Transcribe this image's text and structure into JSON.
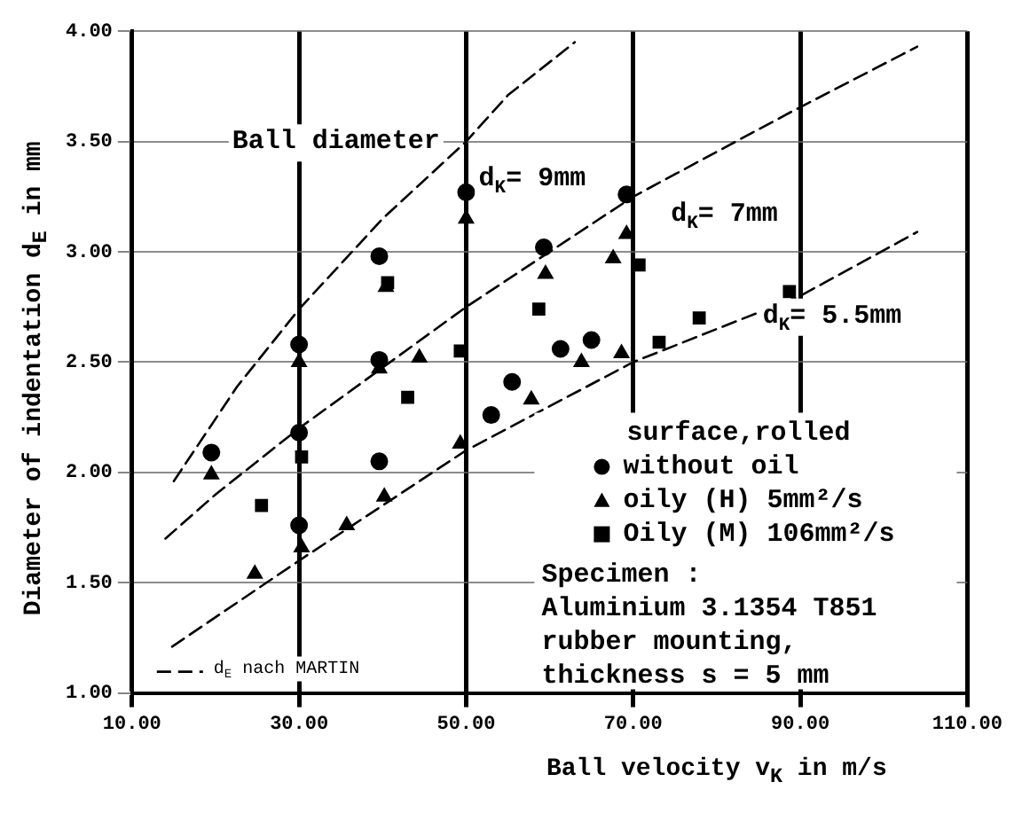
{
  "chart_data": {
    "type": "scatter",
    "xlabel": "Ball velocity v$_{K}$ in m/s",
    "ylabel": "Diameter of indentation d$_{E}$ in mm",
    "xlim": [
      10,
      110
    ],
    "ylim": [
      1,
      4
    ],
    "xticks": [
      {
        "value": 10,
        "label": "10.00"
      },
      {
        "value": 30,
        "label": "30.00"
      },
      {
        "value": 50,
        "label": "50.00"
      },
      {
        "value": 70,
        "label": "70.00"
      },
      {
        "value": 90,
        "label": "90.00"
      },
      {
        "value": 110,
        "label": "110.00"
      }
    ],
    "yticks": [
      {
        "value": 1,
        "label": "1.00"
      },
      {
        "value": 1.5,
        "label": "1.50"
      },
      {
        "value": 2,
        "label": "2.00"
      },
      {
        "value": 2.5,
        "label": "2.50"
      },
      {
        "value": 3,
        "label": "3.00"
      },
      {
        "value": 3.5,
        "label": "3.50"
      },
      {
        "value": 4,
        "label": "4.00"
      }
    ],
    "grid": true,
    "legend": "bottom",
    "series": [
      {
        "type": "scatter",
        "name": "without oil",
        "color": "#000000",
        "marker": "circle",
        "x": [
          19.5,
          30,
          39.6,
          50,
          30,
          39.6,
          59.3,
          69.2,
          30,
          39.6,
          53,
          55.5,
          61.3,
          65
        ],
        "values": [
          2.09,
          2.58,
          2.98,
          3.27,
          2.18,
          2.51,
          3.02,
          3.26,
          1.76,
          2.05,
          2.26,
          2.41,
          2.56,
          2.6
        ]
      },
      {
        "type": "scatter",
        "name": "oily (H) 5mm²/s",
        "color": "#000000",
        "marker": "triangle",
        "x": [
          19.5,
          30,
          40.4,
          50,
          39.6,
          44.4,
          59.5,
          67.6,
          69.2,
          24.7,
          30.3,
          35.7,
          40.2,
          49.3,
          57.8,
          63.8,
          68.6
        ],
        "values": [
          1.99,
          2.5,
          2.84,
          3.15,
          2.47,
          2.52,
          2.9,
          2.97,
          3.08,
          1.54,
          1.66,
          1.76,
          1.89,
          2.13,
          2.33,
          2.5,
          2.54
        ]
      },
      {
        "type": "scatter",
        "name": "Oily (M) 106mm²/s",
        "color": "#000000",
        "marker": "square",
        "x": [
          40.6,
          25.5,
          30.3,
          43,
          49.3,
          58.7,
          70.7,
          73.1,
          77.9,
          88.7
        ],
        "values": [
          2.86,
          1.85,
          2.07,
          2.34,
          2.55,
          2.74,
          2.94,
          2.59,
          2.7,
          2.82
        ]
      },
      {
        "type": "line",
        "name": "d$_{E}$ nach MARTIN",
        "color": "#000000",
        "marker": "none",
        "line_style": "dashed",
        "x": [
          15,
          22.6,
          30,
          40,
          50,
          55,
          63
        ],
        "values": [
          1.96,
          2.39,
          2.74,
          3.15,
          3.5,
          3.71,
          3.95
        ]
      },
      {
        "type": "line",
        "color": "#000000",
        "marker": "none",
        "line_style": "dashed",
        "x": [
          14,
          20,
          30,
          50,
          70,
          88.7,
          104
        ],
        "values": [
          1.7,
          1.9,
          2.2,
          2.75,
          3.25,
          3.63,
          3.93
        ]
      },
      {
        "type": "line",
        "color": "#000000",
        "marker": "none",
        "line_style": "dashed",
        "x": [
          14.8,
          30,
          50,
          70,
          90,
          104
        ],
        "values": [
          1.21,
          1.6,
          2.1,
          2.5,
          2.8,
          3.09
        ]
      }
    ],
    "annotations": [
      "Ball diameter",
      "d$_{K}$= 9mm",
      "d$_{K}$= 7mm",
      "d$_{K}$= 5.5mm",
      "surface,rolled",
      "Specimen :",
      "Aluminium 3.1354 T851",
      "rubber mounting,",
      "thickness s = 5 mm"
    ]
  }
}
